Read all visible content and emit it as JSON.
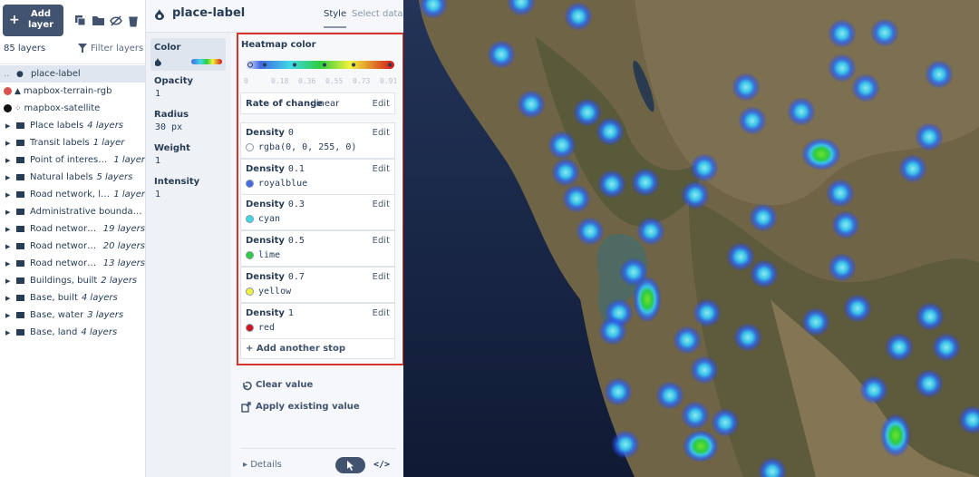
{
  "sidebar": {
    "add_layer": "Add layer",
    "layer_count": "85 layers",
    "filter": "Filter layers",
    "layers": [
      {
        "name": "place-label",
        "icon": "heatmap"
      },
      {
        "name": "mapbox-terrain-rgb",
        "icon": "terrain"
      },
      {
        "name": "mapbox-satellite",
        "icon": "satellite"
      },
      {
        "name": "Place labels",
        "count": "4 layers",
        "icon": "group"
      },
      {
        "name": "Transit labels",
        "count": "1 layer",
        "icon": "group"
      },
      {
        "name": "Point of interest labels",
        "count": "1 layer",
        "icon": "group"
      },
      {
        "name": "Natural labels",
        "count": "5 layers",
        "icon": "group"
      },
      {
        "name": "Road network, labels",
        "count": "1 layer",
        "icon": "group"
      },
      {
        "name": "Administrative boundaries",
        "icon": "group"
      },
      {
        "name": "Road network, bridges",
        "count": "19 layers",
        "icon": "group"
      },
      {
        "name": "Road network, surface",
        "count": "20 layers",
        "icon": "group"
      },
      {
        "name": "Road network, tunnels",
        "count": "13 layers",
        "icon": "group"
      },
      {
        "name": "Buildings, built",
        "count": "2 layers",
        "icon": "group"
      },
      {
        "name": "Base, built",
        "count": "4 layers",
        "icon": "group"
      },
      {
        "name": "Base, water",
        "count": "3 layers",
        "icon": "group"
      },
      {
        "name": "Base, land",
        "count": "4 layers",
        "icon": "group"
      }
    ]
  },
  "panel": {
    "title": "place-label",
    "tabs": [
      "Style",
      "Select data"
    ],
    "properties": [
      {
        "name": "Color"
      },
      {
        "name": "Opacity",
        "value": "1"
      },
      {
        "name": "Radius",
        "value": "30 px"
      },
      {
        "name": "Weight",
        "value": "1"
      },
      {
        "name": "Intensity",
        "value": "1"
      }
    ],
    "heatmap": {
      "title": "Heatmap color",
      "scale_labels": [
        "0",
        "0.18",
        "0.36",
        "0.55",
        "0.73",
        "0.91"
      ],
      "rate_label": "Rate of change",
      "rate_value": "linear",
      "edit": "Edit",
      "density_label": "Density",
      "stops": [
        {
          "density": "0",
          "value": "rgba(0, 0, 255, 0)",
          "swatch": "#ffffff"
        },
        {
          "density": "0.1",
          "value": "royalblue",
          "swatch": "#4169e1"
        },
        {
          "density": "0.3",
          "value": "cyan",
          "swatch": "#3fd9e6"
        },
        {
          "density": "0.5",
          "value": "lime",
          "swatch": "#2ecc40"
        },
        {
          "density": "0.7",
          "value": "yellow",
          "swatch": "#f2f23a"
        },
        {
          "density": "1",
          "value": "red",
          "swatch": "#d0141b"
        }
      ],
      "add_stop": "+ Add another stop"
    },
    "actions": {
      "clear": "Clear value",
      "apply": "Apply existing value"
    },
    "details": "Details"
  }
}
